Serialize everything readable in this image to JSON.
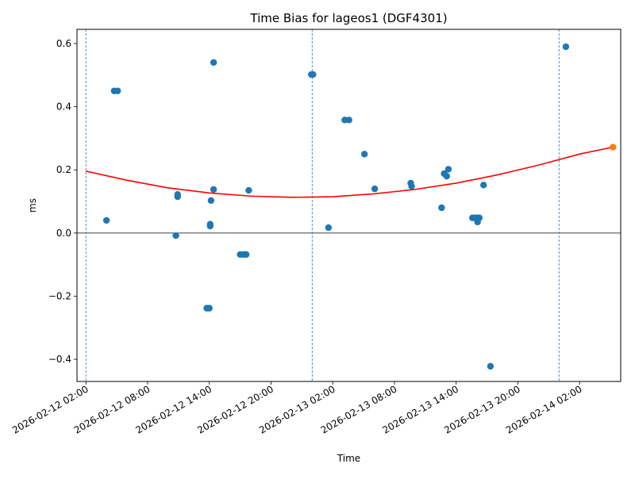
{
  "chart_data": {
    "type": "scatter",
    "title": "Time Bias for lageos1 (DGF4301)",
    "xlabel": "Time",
    "ylabel": "ms",
    "x_is_datetime": true,
    "xlim": [
      "2026-02-12T01:08:00",
      "2026-02-14T06:00:00"
    ],
    "ylim": [
      -0.47,
      0.645
    ],
    "xticks": [
      {
        "t": "2026-02-12T02:00:00",
        "label": "2026-02-12 02:00"
      },
      {
        "t": "2026-02-12T08:00:00",
        "label": "2026-02-12 08:00"
      },
      {
        "t": "2026-02-12T14:00:00",
        "label": "2026-02-12 14:00"
      },
      {
        "t": "2026-02-12T20:00:00",
        "label": "2026-02-12 20:00"
      },
      {
        "t": "2026-02-13T02:00:00",
        "label": "2026-02-13 02:00"
      },
      {
        "t": "2026-02-13T08:00:00",
        "label": "2026-02-13 08:00"
      },
      {
        "t": "2026-02-13T14:00:00",
        "label": "2026-02-13 14:00"
      },
      {
        "t": "2026-02-13T20:00:00",
        "label": "2026-02-13 20:00"
      },
      {
        "t": "2026-02-14T02:00:00",
        "label": "2026-02-14 02:00"
      }
    ],
    "yticks": [
      {
        "v": -0.4,
        "label": "−0.4"
      },
      {
        "v": -0.2,
        "label": "−0.2"
      },
      {
        "v": 0.0,
        "label": "0.0"
      },
      {
        "v": 0.2,
        "label": "0.2"
      },
      {
        "v": 0.4,
        "label": "0.4"
      },
      {
        "v": 0.6,
        "label": "0.6"
      }
    ],
    "zero_line": 0.0,
    "vertical_lines": [
      "2026-02-12T02:00:00",
      "2026-02-13T00:00:00",
      "2026-02-14T00:00:00"
    ],
    "grid": false,
    "legend": "none",
    "series": [
      {
        "kind": "scatter",
        "color": "#1f77b4",
        "points": [
          {
            "x": "2026-02-12T04:00:00",
            "y": 0.04
          },
          {
            "x": "2026-02-12T04:45:00",
            "y": 0.45
          },
          {
            "x": "2026-02-12T05:05:00",
            "y": 0.45
          },
          {
            "x": "2026-02-12T10:45:00",
            "y": -0.008
          },
          {
            "x": "2026-02-12T10:55:00",
            "y": 0.115
          },
          {
            "x": "2026-02-12T10:55:00",
            "y": 0.122
          },
          {
            "x": "2026-02-12T13:45:00",
            "y": -0.238
          },
          {
            "x": "2026-02-12T14:00:00",
            "y": -0.238
          },
          {
            "x": "2026-02-12T14:05:00",
            "y": 0.028
          },
          {
            "x": "2026-02-12T14:05:00",
            "y": 0.022
          },
          {
            "x": "2026-02-12T14:10:00",
            "y": 0.103
          },
          {
            "x": "2026-02-12T14:25:00",
            "y": 0.54
          },
          {
            "x": "2026-02-12T14:25:00",
            "y": 0.138
          },
          {
            "x": "2026-02-12T17:00:00",
            "y": -0.068
          },
          {
            "x": "2026-02-12T17:20:00",
            "y": -0.068
          },
          {
            "x": "2026-02-12T17:35:00",
            "y": -0.068
          },
          {
            "x": "2026-02-12T17:50:00",
            "y": 0.135
          },
          {
            "x": "2026-02-12T23:55:00",
            "y": 0.502
          },
          {
            "x": "2026-02-13T00:05:00",
            "y": 0.502
          },
          {
            "x": "2026-02-13T01:35:00",
            "y": 0.017
          },
          {
            "x": "2026-02-13T03:10:00",
            "y": 0.358
          },
          {
            "x": "2026-02-13T03:35:00",
            "y": 0.358
          },
          {
            "x": "2026-02-13T05:05:00",
            "y": 0.25
          },
          {
            "x": "2026-02-13T06:05:00",
            "y": 0.14
          },
          {
            "x": "2026-02-13T09:35:00",
            "y": 0.158
          },
          {
            "x": "2026-02-13T09:40:00",
            "y": 0.148
          },
          {
            "x": "2026-02-13T12:35:00",
            "y": 0.08
          },
          {
            "x": "2026-02-13T12:50:00",
            "y": 0.188
          },
          {
            "x": "2026-02-13T13:05:00",
            "y": 0.18
          },
          {
            "x": "2026-02-13T13:15:00",
            "y": 0.202
          },
          {
            "x": "2026-02-13T15:35:00",
            "y": 0.048
          },
          {
            "x": "2026-02-13T15:50:00",
            "y": 0.048
          },
          {
            "x": "2026-02-13T16:00:00",
            "y": 0.048
          },
          {
            "x": "2026-02-13T16:05:00",
            "y": 0.035
          },
          {
            "x": "2026-02-13T16:10:00",
            "y": 0.048
          },
          {
            "x": "2026-02-13T16:15:00",
            "y": 0.048
          },
          {
            "x": "2026-02-13T16:40:00",
            "y": 0.152
          },
          {
            "x": "2026-02-13T17:20:00",
            "y": -0.422
          },
          {
            "x": "2026-02-14T00:40:00",
            "y": 0.59
          }
        ]
      },
      {
        "kind": "line",
        "color": "#ff0000",
        "x": [
          "2026-02-12T02:00:00",
          "2026-02-12T06:00:00",
          "2026-02-12T10:00:00",
          "2026-02-12T14:00:00",
          "2026-02-12T18:00:00",
          "2026-02-12T22:00:00",
          "2026-02-13T02:00:00",
          "2026-02-13T06:00:00",
          "2026-02-13T10:00:00",
          "2026-02-13T14:00:00",
          "2026-02-13T18:00:00",
          "2026-02-13T22:00:00",
          "2026-02-14T02:00:00",
          "2026-02-14T05:15:00"
        ],
        "y": [
          0.196,
          0.167,
          0.143,
          0.127,
          0.117,
          0.113,
          0.115,
          0.124,
          0.138,
          0.158,
          0.184,
          0.215,
          0.25,
          0.272
        ]
      },
      {
        "kind": "scatter",
        "color": "#ff7f0e",
        "points": [
          {
            "x": "2026-02-14T05:15:00",
            "y": 0.272
          }
        ]
      }
    ]
  }
}
